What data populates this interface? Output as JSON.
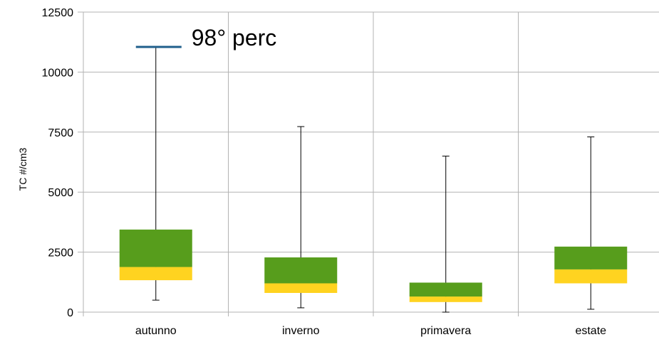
{
  "chart_data": {
    "type": "boxplot",
    "title": "",
    "xlabel": "",
    "ylabel": "TC #/cm3",
    "ylim": [
      0,
      12500
    ],
    "yticks": [
      0,
      2500,
      5000,
      7500,
      10000,
      12500
    ],
    "grid": true,
    "legend": "none",
    "categories": [
      "autunno",
      "inverno",
      "primavera",
      "estate"
    ],
    "boxes": [
      {
        "category": "autunno",
        "whisker_low": 500,
        "q1": 1330,
        "median": 1880,
        "q3": 3440,
        "whisker_high": 11050
      },
      {
        "category": "inverno",
        "whisker_low": 180,
        "q1": 800,
        "median": 1200,
        "q3": 2280,
        "whisker_high": 7730
      },
      {
        "category": "primavera",
        "whisker_low": 0,
        "q1": 420,
        "median": 650,
        "q3": 1230,
        "whisker_high": 6500
      },
      {
        "category": "estate",
        "whisker_low": 120,
        "q1": 1200,
        "median": 1780,
        "q3": 2730,
        "whisker_high": 7300
      }
    ],
    "annotation": {
      "text": "98° perc",
      "category": "autunno",
      "value": 11050,
      "color": "#1f5f8b"
    },
    "colors": {
      "lower_box": "#ffd320",
      "upper_box": "#579d1c",
      "whisker": "#000000",
      "grid": "#b3b3b3",
      "axis": "#b3b3b3"
    }
  }
}
